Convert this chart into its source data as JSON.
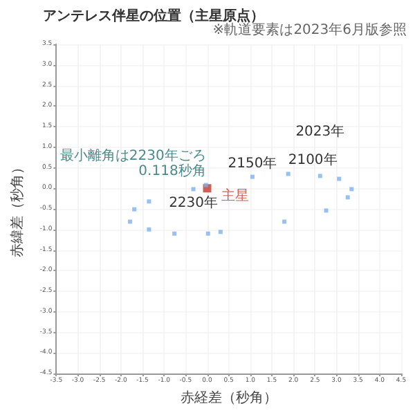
{
  "chart_data": {
    "type": "scatter",
    "title": "アンテレス伴星の位置（主星原点）",
    "xlabel": "赤経差（秒角）",
    "ylabel": "赤緯差（秒角）",
    "annotations": [
      "※軌道要素は2023年6月版参照",
      {
        "text": "最小離角は2230年ごろ\n0.118秒角",
        "x": -0.03,
        "y": 0.08
      },
      {
        "text": "2230年",
        "x": -0.32,
        "y": -0.02
      },
      {
        "text": "2150年",
        "x": 1.05,
        "y": 0.28
      },
      {
        "text": "2100年",
        "x": 1.88,
        "y": 0.35
      },
      {
        "text": "2023年",
        "x": 2.62,
        "y": 0.3
      }
    ],
    "series": [
      {
        "color": "#7fb2ec",
        "x": [
          2.62,
          3.06,
          3.35,
          3.26,
          2.76,
          1.79,
          0.31,
          0.02,
          -0.76,
          -1.35,
          -1.79,
          -1.69,
          -1.35,
          -0.32,
          -0.03,
          1.05,
          1.88
        ],
        "values": [
          0.3,
          0.23,
          -0.02,
          -0.22,
          -0.54,
          -0.81,
          -1.06,
          -1.1,
          -1.1,
          -1.0,
          -0.81,
          -0.51,
          -0.32,
          -0.02,
          0.08,
          0.28,
          0.35
        ],
        "marker": "square"
      },
      {
        "name": "主星",
        "color": "#c0392b",
        "x": [
          0
        ],
        "values": [
          0
        ],
        "marker": "square"
      }
    ],
    "xlim": [
      -3.5,
      4.5
    ],
    "xticks": [
      -3.5,
      {
        "value": -3,
        "label": "-3.0"
      },
      -2.5,
      {
        "value": -2,
        "label": "-2.0"
      },
      -1.5,
      {
        "value": -1,
        "label": "-1.0"
      },
      -0.5,
      {
        "value": 0,
        "label": "0.0"
      },
      0.5,
      {
        "value": 1,
        "label": "1.0"
      },
      1.5,
      {
        "value": 2,
        "label": "2.0"
      },
      2.5,
      {
        "value": 3,
        "label": "3.0"
      },
      3.5,
      {
        "value": 4,
        "label": "4.0"
      },
      4.5
    ],
    "ylim": [
      -4.5,
      3.5
    ],
    "yticks": [
      -4.5,
      {
        "value": -4,
        "label": "-4.0"
      },
      -3.5,
      {
        "value": -3,
        "label": "-3.0"
      },
      -2.5,
      {
        "value": -2,
        "label": "-2.0"
      },
      -1.5,
      {
        "value": -1,
        "label": "-1.0"
      },
      -0.5,
      {
        "value": 0,
        "label": "0.0"
      },
      0.5,
      {
        "value": 1,
        "label": "1.0"
      },
      1.5,
      {
        "value": 2,
        "label": "2.0"
      },
      2.5,
      {
        "value": 3,
        "label": "3.0"
      },
      3.5
    ],
    "grid": true,
    "legend": false
  }
}
